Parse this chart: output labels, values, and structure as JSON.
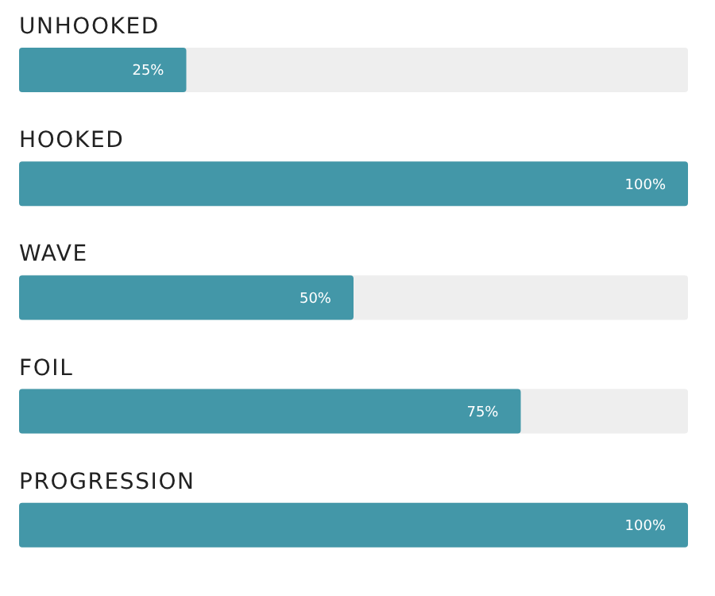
{
  "chart_data": {
    "type": "bar",
    "orientation": "horizontal",
    "categories": [
      "UNHOOKED",
      "HOOKED",
      "WAVE",
      "FOIL",
      "PROGRESSION"
    ],
    "values": [
      25,
      100,
      50,
      75,
      100
    ],
    "value_labels": [
      "25%",
      "100%",
      "50%",
      "75%",
      "100%"
    ],
    "color": "#4397a8",
    "xlim": [
      0,
      100
    ],
    "tick_labels": "y"
  }
}
